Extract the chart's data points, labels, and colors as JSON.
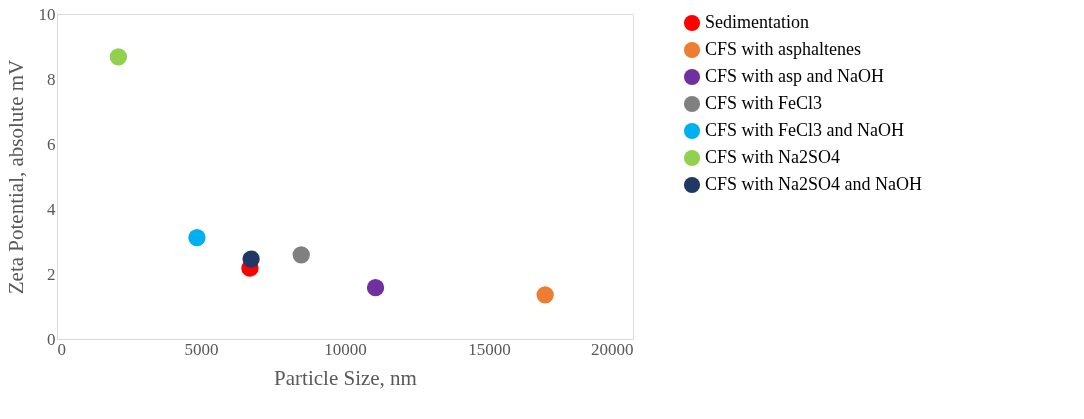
{
  "chart_data": {
    "type": "scatter",
    "xlabel": "Particle Size, nm",
    "ylabel": "Zeta Potential, absolute mV",
    "xlim": [
      0,
      20000
    ],
    "xticks": [
      0,
      5000,
      10000,
      15000,
      20000
    ],
    "ylim": [
      0,
      10
    ],
    "yticks": [
      0,
      2,
      4,
      6,
      8,
      10
    ],
    "grid": false,
    "legend": "right",
    "marker": "circle",
    "series": [
      {
        "name": "Sedimentation",
        "color": "#ff0000",
        "x": [
          6700
        ],
        "values": [
          2.18
        ]
      },
      {
        "name": "CFS with asphaltenes",
        "color": "#ed7d31",
        "x": [
          16950
        ],
        "values": [
          1.36
        ]
      },
      {
        "name": "CFS with asp and NaOH",
        "color": "#7030a0",
        "x": [
          11060
        ],
        "values": [
          1.58
        ]
      },
      {
        "name": "CFS with FeCl3",
        "color": "#808080",
        "x": [
          8480
        ],
        "values": [
          2.59
        ]
      },
      {
        "name": "CFS with FeCl3 and NaOH",
        "color": "#00b0f0",
        "x": [
          4860
        ],
        "values": [
          3.12
        ]
      },
      {
        "name": "CFS with Na2SO4",
        "color": "#92d050",
        "x": [
          2130
        ],
        "values": [
          8.68
        ]
      },
      {
        "name": "CFS with Na2SO4 and NaOH",
        "color": "#203864",
        "x": [
          6740
        ],
        "values": [
          2.46
        ]
      }
    ]
  }
}
